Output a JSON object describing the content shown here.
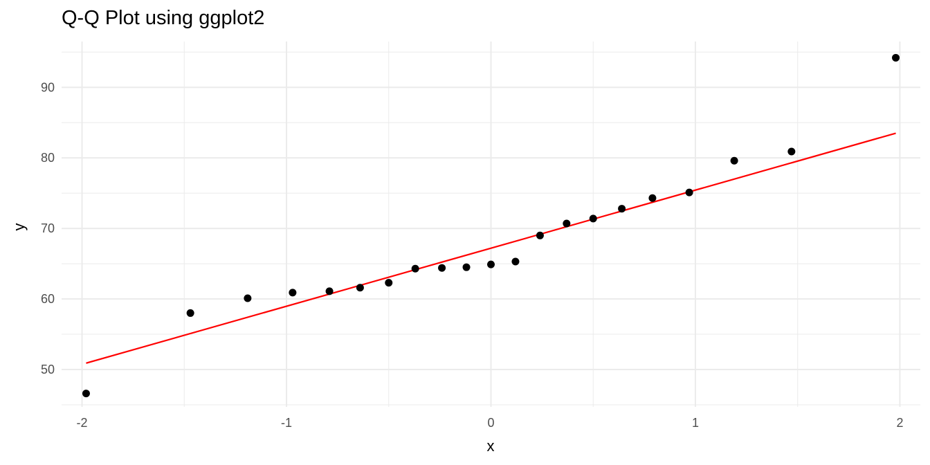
{
  "chart_data": {
    "type": "scatter",
    "title": "Q-Q Plot using ggplot2",
    "xlabel": "x",
    "ylabel": "y",
    "xlim": [
      -2.1,
      2.1
    ],
    "ylim": [
      44.7,
      96.5
    ],
    "x_ticks": [
      -2,
      -1,
      0,
      1,
      2
    ],
    "x_tick_labels": [
      "-2",
      "-1",
      "0",
      "1",
      "2"
    ],
    "y_ticks": [
      50,
      60,
      70,
      80,
      90
    ],
    "y_tick_labels": [
      "50",
      "60",
      "70",
      "80",
      "90"
    ],
    "grid": true,
    "legend": "none",
    "colors": {
      "points": "#000000",
      "line": "#ff0000",
      "grid": "#ebebeb",
      "text": "#4d4d4d"
    },
    "points": [
      {
        "x": -1.98,
        "y": 46.6
      },
      {
        "x": -1.47,
        "y": 58.0
      },
      {
        "x": -1.19,
        "y": 60.1
      },
      {
        "x": -0.97,
        "y": 60.9
      },
      {
        "x": -0.79,
        "y": 61.1
      },
      {
        "x": -0.64,
        "y": 61.6
      },
      {
        "x": -0.5,
        "y": 62.3
      },
      {
        "x": -0.37,
        "y": 64.3
      },
      {
        "x": -0.24,
        "y": 64.4
      },
      {
        "x": -0.12,
        "y": 64.5
      },
      {
        "x": 0.0,
        "y": 64.9
      },
      {
        "x": 0.12,
        "y": 65.3
      },
      {
        "x": 0.24,
        "y": 69.0
      },
      {
        "x": 0.37,
        "y": 70.7
      },
      {
        "x": 0.5,
        "y": 71.4
      },
      {
        "x": 0.64,
        "y": 72.8
      },
      {
        "x": 0.79,
        "y": 74.3
      },
      {
        "x": 0.97,
        "y": 75.1
      },
      {
        "x": 1.19,
        "y": 79.6
      },
      {
        "x": 1.47,
        "y": 80.9
      },
      {
        "x": 1.98,
        "y": 94.2
      }
    ],
    "reference_line": {
      "x": [
        -1.98,
        1.98
      ],
      "y": [
        50.9,
        83.5
      ]
    }
  }
}
